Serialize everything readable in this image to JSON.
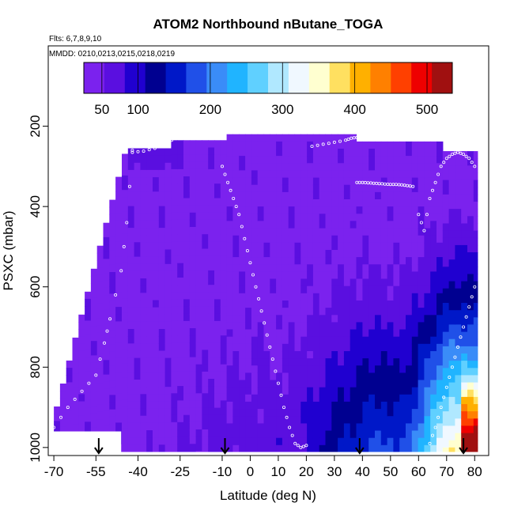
{
  "chart_data": {
    "type": "heatmap",
    "title": "ATOM2 Northbound nButane_TOGA",
    "annotations": [
      "Flts: 6,7,8,9,10",
      "MMDD: 0210,0213,0215,0218,0219"
    ],
    "xlabel": "Latitude (deg N)",
    "ylabel": "PSXC (mbar)",
    "xlim": [
      -72,
      85
    ],
    "ylim": [
      1020,
      0
    ],
    "x_ticks": [
      -70,
      -55,
      -40,
      -25,
      -10,
      0,
      10,
      20,
      30,
      40,
      50,
      60,
      70,
      80
    ],
    "y_ticks": [
      200,
      400,
      600,
      800,
      1000
    ],
    "colorbar": {
      "range": [
        25,
        535
      ],
      "ticks": [
        50,
        100,
        200,
        300,
        400,
        500
      ],
      "colors": [
        "#7b22ee",
        "#5a0fe0",
        "#2000d0",
        "#000090",
        "#0018c8",
        "#2050e8",
        "#3a8cf8",
        "#20b4ff",
        "#60d0ff",
        "#b0e8ff",
        "#f0f8ff",
        "#ffffd0",
        "#ffe060",
        "#ffb000",
        "#ff8000",
        "#ff4000",
        "#ee0000",
        "#a01010"
      ]
    },
    "arrows_lat": [
      -54,
      -9,
      39,
      76
    ],
    "tracks": [
      {
        "lat": [
          -70,
          -65,
          -60,
          -55,
          -52,
          -50,
          -46,
          -44,
          -42
        ],
        "p": [
          950,
          900,
          860,
          820,
          740,
          680,
          560,
          440,
          260
        ]
      },
      {
        "lat": [
          -42,
          -38,
          -34,
          -30,
          -28
        ],
        "p": [
          265,
          262,
          255,
          240,
          235
        ]
      },
      {
        "lat": [
          -10,
          -8,
          -6,
          -4,
          -2,
          0,
          2,
          4,
          6,
          8,
          10,
          12,
          14,
          16,
          18,
          20
        ],
        "p": [
          300,
          340,
          380,
          420,
          480,
          540,
          600,
          660,
          720,
          780,
          840,
          900,
          950,
          990,
          1000,
          995
        ]
      },
      {
        "lat": [
          22,
          26,
          30,
          34,
          36,
          38
        ],
        "p": [
          250,
          245,
          240,
          235,
          230,
          228
        ]
      },
      {
        "lat": [
          38,
          40,
          42,
          44,
          46,
          48,
          50,
          52,
          54,
          56,
          58
        ],
        "p": [
          340,
          340,
          341,
          342,
          343,
          344,
          345,
          345,
          346,
          348,
          350
        ]
      },
      {
        "lat": [
          60,
          62,
          64,
          66,
          68,
          70,
          72,
          74,
          76,
          78,
          80
        ],
        "p": [
          420,
          460,
          380,
          340,
          300,
          280,
          270,
          265,
          270,
          280,
          300
        ]
      },
      {
        "lat": [
          64,
          66,
          68,
          70,
          72,
          74,
          76,
          78,
          80
        ],
        "p": [
          990,
          950,
          900,
          850,
          800,
          750,
          700,
          650,
          600
        ]
      }
    ]
  }
}
